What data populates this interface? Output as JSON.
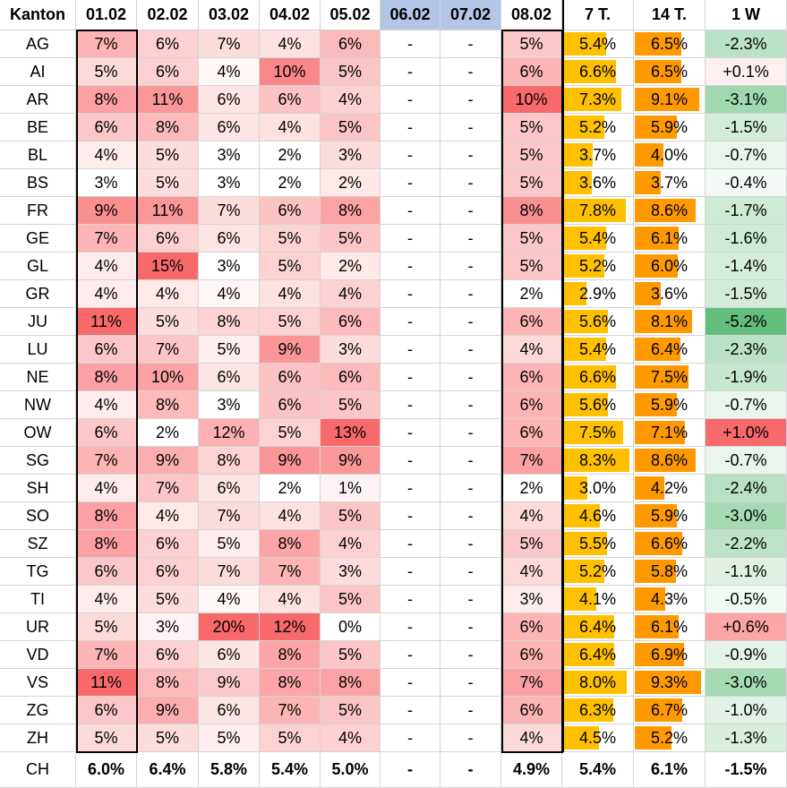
{
  "table": {
    "header": [
      "Kanton",
      "01.02",
      "02.02",
      "03.02",
      "04.02",
      "05.02",
      "06.02",
      "07.02",
      "08.02",
      "7 T.",
      "14 T.",
      "1 W"
    ],
    "rows": [
      [
        "AG",
        "7%",
        "6%",
        "7%",
        "4%",
        "6%",
        "-",
        "-",
        "5%",
        "5.4%",
        "6.5%",
        "-2.3%"
      ],
      [
        "AI",
        "5%",
        "6%",
        "4%",
        "10%",
        "5%",
        "-",
        "-",
        "6%",
        "6.6%",
        "6.5%",
        "+0.1%"
      ],
      [
        "AR",
        "8%",
        "11%",
        "6%",
        "6%",
        "4%",
        "-",
        "-",
        "10%",
        "7.3%",
        "9.1%",
        "-3.1%"
      ],
      [
        "BE",
        "6%",
        "8%",
        "6%",
        "4%",
        "5%",
        "-",
        "-",
        "5%",
        "5.2%",
        "5.9%",
        "-1.5%"
      ],
      [
        "BL",
        "4%",
        "5%",
        "3%",
        "2%",
        "3%",
        "-",
        "-",
        "5%",
        "3.7%",
        "4.0%",
        "-0.7%"
      ],
      [
        "BS",
        "3%",
        "5%",
        "3%",
        "2%",
        "2%",
        "-",
        "-",
        "5%",
        "3.6%",
        "3.7%",
        "-0.4%"
      ],
      [
        "FR",
        "9%",
        "11%",
        "7%",
        "6%",
        "8%",
        "-",
        "-",
        "8%",
        "7.8%",
        "8.6%",
        "-1.7%"
      ],
      [
        "GE",
        "7%",
        "6%",
        "6%",
        "5%",
        "5%",
        "-",
        "-",
        "5%",
        "5.4%",
        "6.1%",
        "-1.6%"
      ],
      [
        "GL",
        "4%",
        "15%",
        "3%",
        "5%",
        "2%",
        "-",
        "-",
        "5%",
        "5.2%",
        "6.0%",
        "-1.4%"
      ],
      [
        "GR",
        "4%",
        "4%",
        "4%",
        "4%",
        "4%",
        "-",
        "-",
        "2%",
        "2.9%",
        "3.6%",
        "-1.5%"
      ],
      [
        "JU",
        "11%",
        "5%",
        "8%",
        "5%",
        "6%",
        "-",
        "-",
        "6%",
        "5.6%",
        "8.1%",
        "-5.2%"
      ],
      [
        "LU",
        "6%",
        "7%",
        "5%",
        "9%",
        "3%",
        "-",
        "-",
        "4%",
        "5.4%",
        "6.4%",
        "-2.3%"
      ],
      [
        "NE",
        "8%",
        "10%",
        "6%",
        "6%",
        "6%",
        "-",
        "-",
        "6%",
        "6.6%",
        "7.5%",
        "-1.9%"
      ],
      [
        "NW",
        "4%",
        "8%",
        "3%",
        "6%",
        "5%",
        "-",
        "-",
        "6%",
        "5.6%",
        "5.9%",
        "-0.7%"
      ],
      [
        "OW",
        "6%",
        "2%",
        "12%",
        "5%",
        "13%",
        "-",
        "-",
        "6%",
        "7.5%",
        "7.1%",
        "+1.0%"
      ],
      [
        "SG",
        "7%",
        "9%",
        "8%",
        "9%",
        "9%",
        "-",
        "-",
        "7%",
        "8.3%",
        "8.6%",
        "-0.7%"
      ],
      [
        "SH",
        "4%",
        "7%",
        "6%",
        "2%",
        "1%",
        "-",
        "-",
        "2%",
        "3.0%",
        "4.2%",
        "-2.4%"
      ],
      [
        "SO",
        "8%",
        "4%",
        "7%",
        "4%",
        "5%",
        "-",
        "-",
        "4%",
        "4.6%",
        "5.9%",
        "-3.0%"
      ],
      [
        "SZ",
        "8%",
        "6%",
        "5%",
        "8%",
        "4%",
        "-",
        "-",
        "5%",
        "5.5%",
        "6.6%",
        "-2.2%"
      ],
      [
        "TG",
        "6%",
        "6%",
        "7%",
        "7%",
        "3%",
        "-",
        "-",
        "4%",
        "5.2%",
        "5.8%",
        "-1.1%"
      ],
      [
        "TI",
        "4%",
        "5%",
        "4%",
        "4%",
        "5%",
        "-",
        "-",
        "3%",
        "4.1%",
        "4.3%",
        "-0.5%"
      ],
      [
        "UR",
        "5%",
        "3%",
        "20%",
        "12%",
        "0%",
        "-",
        "-",
        "6%",
        "6.4%",
        "6.1%",
        "+0.6%"
      ],
      [
        "VD",
        "7%",
        "6%",
        "6%",
        "8%",
        "5%",
        "-",
        "-",
        "6%",
        "6.4%",
        "6.9%",
        "-0.9%"
      ],
      [
        "VS",
        "11%",
        "8%",
        "9%",
        "8%",
        "8%",
        "-",
        "-",
        "7%",
        "8.0%",
        "9.3%",
        "-3.0%"
      ],
      [
        "ZG",
        "6%",
        "9%",
        "6%",
        "7%",
        "5%",
        "-",
        "-",
        "6%",
        "6.3%",
        "6.7%",
        "-1.0%"
      ],
      [
        "ZH",
        "5%",
        "5%",
        "5%",
        "5%",
        "4%",
        "-",
        "-",
        "4%",
        "4.5%",
        "5.2%",
        "-1.3%"
      ],
      [
        "CH",
        "6.0%",
        "6.4%",
        "5.8%",
        "5.4%",
        "5.0%",
        "-",
        "-",
        "4.9%",
        "5.4%",
        "6.1%",
        "-1.5%"
      ]
    ]
  }
}
